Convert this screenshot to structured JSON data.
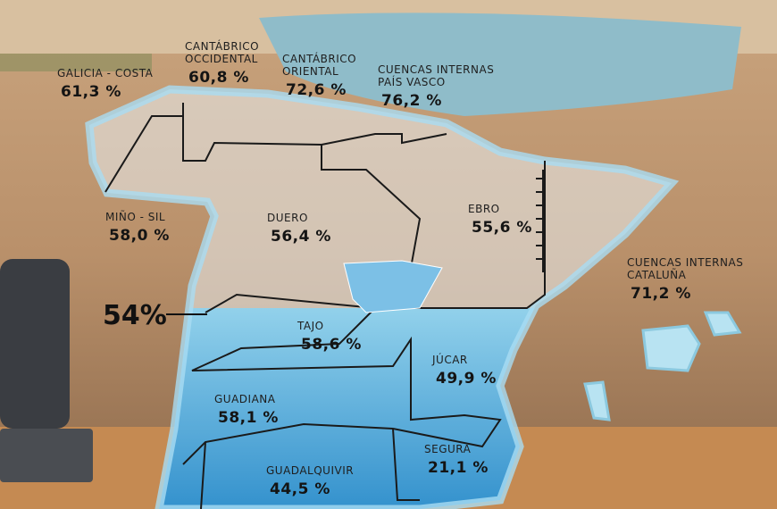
{
  "level": "54%",
  "basins": [
    {
      "name": [
        "GALICIA - COSTA"
      ],
      "value": "61,3 %"
    },
    {
      "name": [
        "CANTÁBRICO",
        "OCCIDENTAL"
      ],
      "value": "60,8 %"
    },
    {
      "name": [
        "CANTÁBRICO",
        "ORIENTAL"
      ],
      "value": "72,6 %"
    },
    {
      "name": [
        "CUENCAS INTERNAS",
        "PAÍS VASCO"
      ],
      "value": "76,2 %"
    },
    {
      "name": [
        "MIÑO - SIL"
      ],
      "value": "58,0 %"
    },
    {
      "name": [
        "DUERO"
      ],
      "value": "56,4 %"
    },
    {
      "name": [
        "EBRO"
      ],
      "value": "55,6 %"
    },
    {
      "name": [
        "CUENCAS INTERNAS",
        "CATALUÑA"
      ],
      "value": "71,2 %"
    },
    {
      "name": [
        "TAJO"
      ],
      "value": "58,6 %"
    },
    {
      "name": [
        "JÚCAR"
      ],
      "value": "49,9 %"
    },
    {
      "name": [
        "GUADIANA"
      ],
      "value": "58,1 %"
    },
    {
      "name": [
        "SEGURA"
      ],
      "value": "21,1 %"
    },
    {
      "name": [
        "GUADALQUIVIR"
      ],
      "value": "44,5 %"
    }
  ]
}
